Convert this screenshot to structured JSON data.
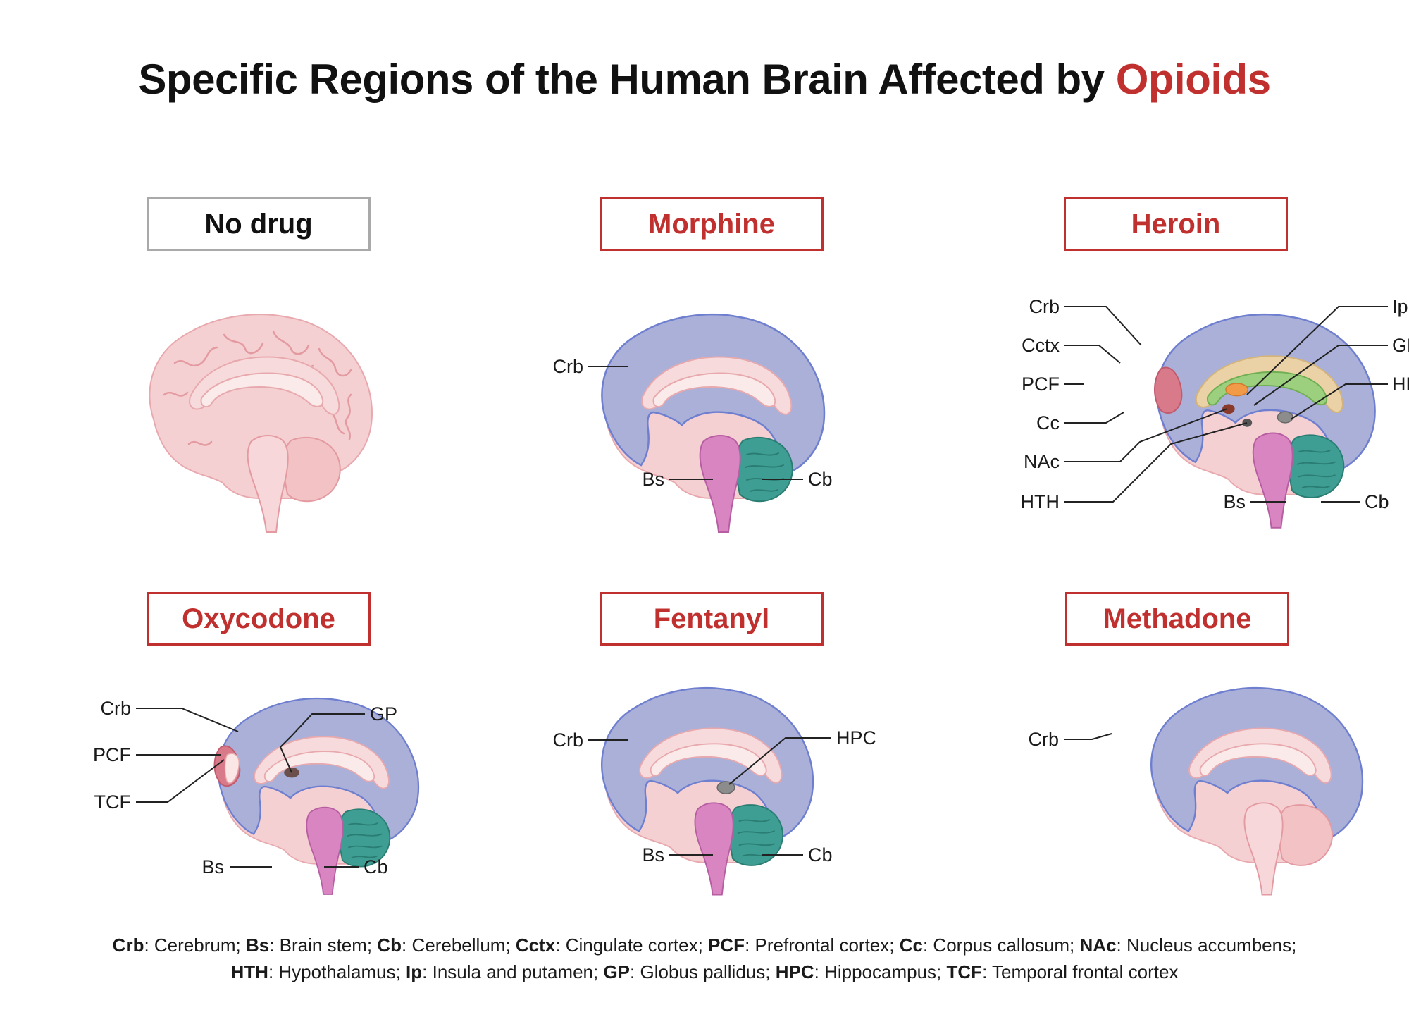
{
  "title": {
    "main": "Specific Regions of the Human Brain Affected by",
    "highlight": "Opioids"
  },
  "colors": {
    "accent": "#c0302e",
    "neutral_border": "#a9a9a9",
    "brain_pink": "#f3c6c8",
    "cerebrum": "#aab0d8",
    "cerebellum": "#3f9e93",
    "brainstem": "#d985c2",
    "cingulate": "#ead2a6",
    "corpus_callosum": "#9ccf7e",
    "prefrontal": "#d97a8a",
    "insula_putamen": "#f19a47",
    "nucleus_accumbens": "#8a3a2b",
    "globus_pallidus": "#6b4f4a",
    "hippocampus": "#8c8c8c",
    "hypothalamus": "#555555"
  },
  "panels": [
    {
      "id": "nodrug",
      "title": "No drug",
      "labels": []
    },
    {
      "id": "morphine",
      "title": "Morphine",
      "labels": [
        "Crb",
        "Bs",
        "Cb"
      ]
    },
    {
      "id": "heroin",
      "title": "Heroin",
      "labels": [
        "Crb",
        "Cctx",
        "PCF",
        "Cc",
        "NAc",
        "HTH",
        "Bs",
        "Cb",
        "Ip",
        "GP",
        "HPC"
      ]
    },
    {
      "id": "oxycodone",
      "title": "Oxycodone",
      "labels": [
        "Crb",
        "PCF",
        "TCF",
        "GP",
        "Bs",
        "Cb"
      ]
    },
    {
      "id": "fentanyl",
      "title": "Fentanyl",
      "labels": [
        "Crb",
        "HPC",
        "Bs",
        "Cb"
      ]
    },
    {
      "id": "methadone",
      "title": "Methadone",
      "labels": [
        "Crb"
      ]
    }
  ],
  "legend": [
    {
      "abbr": "Crb",
      "full": "Cerebrum"
    },
    {
      "abbr": "Bs",
      "full": "Brain stem"
    },
    {
      "abbr": "Cb",
      "full": "Cerebellum"
    },
    {
      "abbr": "Cctx",
      "full": "Cingulate cortex"
    },
    {
      "abbr": "PCF",
      "full": "Prefrontal cortex"
    },
    {
      "abbr": "Cc",
      "full": "Corpus callosum"
    },
    {
      "abbr": "NAc",
      "full": "Nucleus accumbens"
    },
    {
      "abbr": "HTH",
      "full": "Hypothalamus"
    },
    {
      "abbr": "Ip",
      "full": "Insula and putamen"
    },
    {
      "abbr": "GP",
      "full": "Globus pallidus"
    },
    {
      "abbr": "HPC",
      "full": "Hippocampus"
    },
    {
      "abbr": "TCF",
      "full": "Temporal frontal cortex"
    }
  ]
}
